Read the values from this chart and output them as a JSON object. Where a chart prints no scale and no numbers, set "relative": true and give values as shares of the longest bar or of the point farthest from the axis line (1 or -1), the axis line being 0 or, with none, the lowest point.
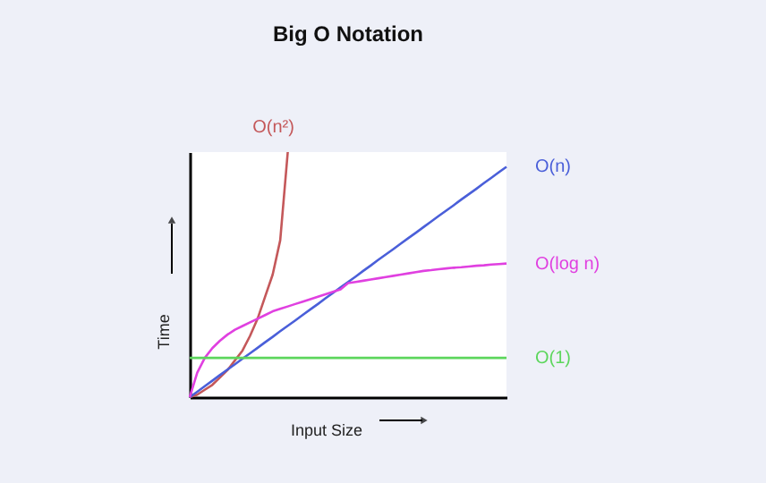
{
  "chart_data": {
    "type": "line",
    "title": "Big O Notation",
    "xlabel": "Input Size",
    "ylabel": "Time",
    "relative": true,
    "line_style": "solid",
    "marker": "none",
    "grid": false,
    "legend": false,
    "categories": [
      null,
      null,
      null,
      null,
      null,
      null,
      null,
      null,
      null,
      null,
      null,
      null,
      null,
      null,
      null,
      null,
      null,
      null,
      null,
      null,
      null,
      null,
      null,
      null,
      null,
      null,
      null,
      null,
      null,
      null,
      null,
      null,
      null,
      null,
      null,
      null,
      null,
      null,
      null,
      null,
      null,
      null,
      null
    ],
    "series": [
      {
        "name": "O(n²)",
        "color": "#c4585a",
        "values": [
          0,
          0.01,
          0.03,
          0.05,
          0.08,
          0.11,
          0.15,
          0.19,
          0.25,
          0.32,
          0.41,
          0.5,
          0.64,
          1.0,
          null,
          null,
          null,
          null,
          null,
          null,
          null,
          null,
          null,
          null,
          null,
          null,
          null,
          null,
          null,
          null,
          null,
          null,
          null,
          null,
          null,
          null,
          null,
          null,
          null,
          null,
          null,
          null,
          null
        ]
      },
      {
        "name": "O(n)",
        "color": "#4a5fd9",
        "values": [
          0,
          0.022,
          0.045,
          0.067,
          0.09,
          0.112,
          0.134,
          0.157,
          0.179,
          0.201,
          0.224,
          0.246,
          0.269,
          0.291,
          0.313,
          0.336,
          0.358,
          0.38,
          0.403,
          0.425,
          0.448,
          0.47,
          0.492,
          0.515,
          0.537,
          0.56,
          0.582,
          0.604,
          0.627,
          0.649,
          0.671,
          0.694,
          0.716,
          0.739,
          0.761,
          0.783,
          0.806,
          0.828,
          0.85,
          0.873,
          0.895,
          0.918,
          0.94
        ]
      },
      {
        "name": "O(log n)",
        "color": "#e040e0",
        "values": [
          0,
          0.1,
          0.16,
          0.2,
          0.23,
          0.255,
          0.275,
          0.29,
          0.305,
          0.32,
          0.335,
          0.35,
          0.36,
          0.37,
          0.38,
          0.39,
          0.4,
          0.41,
          0.42,
          0.43,
          0.44,
          0.465,
          0.47,
          0.475,
          0.48,
          0.485,
          0.49,
          0.495,
          0.5,
          0.505,
          0.51,
          0.515,
          0.518,
          0.522,
          0.525,
          0.528,
          0.53,
          0.533,
          0.536,
          0.538,
          0.541,
          0.543,
          0.545
        ]
      },
      {
        "name": "O(1)",
        "color": "#5cd65c",
        "values": [
          0.16,
          0.16,
          0.16,
          0.16,
          0.16,
          0.16,
          0.16,
          0.16,
          0.16,
          0.16,
          0.16,
          0.16,
          0.16,
          0.16,
          0.16,
          0.16,
          0.16,
          0.16,
          0.16,
          0.16,
          0.16,
          0.16,
          0.16,
          0.16,
          0.16,
          0.16,
          0.16,
          0.16,
          0.16,
          0.16,
          0.16,
          0.16,
          0.16,
          0.16,
          0.16,
          0.16,
          0.16,
          0.16,
          0.16,
          0.16,
          0.16,
          0.16,
          0.16
        ]
      }
    ]
  }
}
